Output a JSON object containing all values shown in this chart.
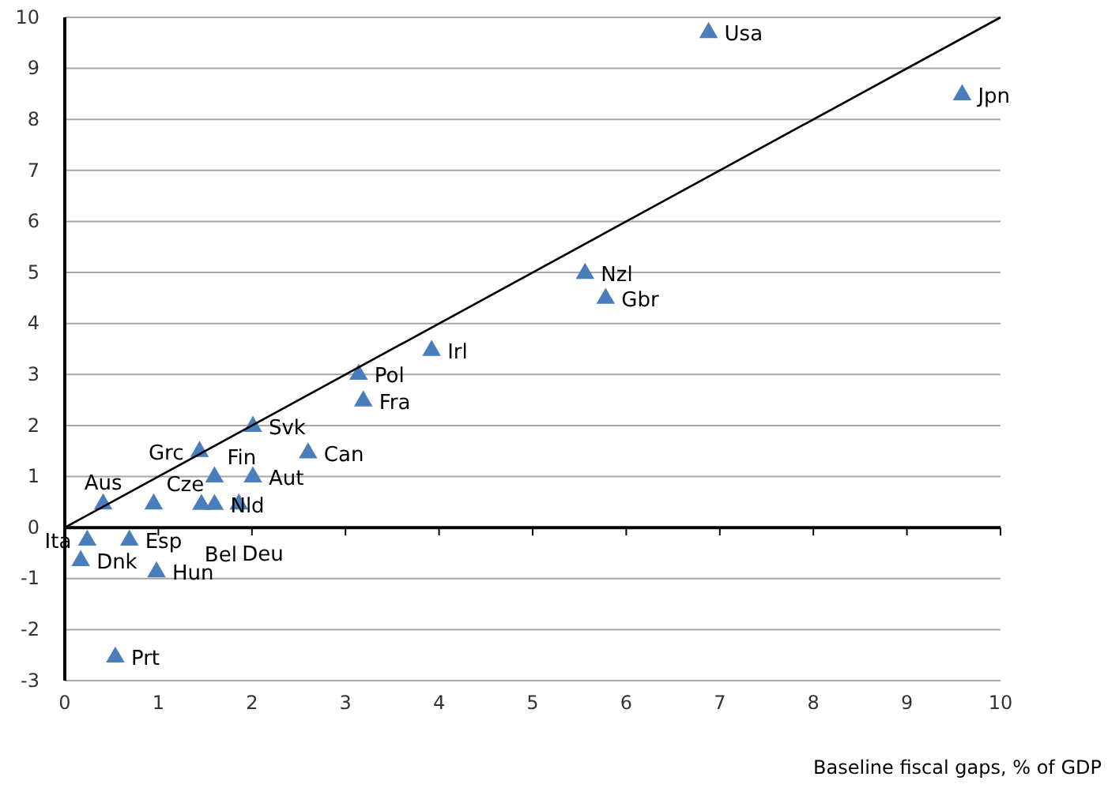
{
  "chart_data": {
    "type": "scatter",
    "xlabel": "Baseline fiscal gaps, % of GDP",
    "xlim": [
      0,
      10
    ],
    "xticks": [
      0,
      1,
      2,
      3,
      4,
      5,
      6,
      7,
      8,
      9,
      10
    ],
    "ylim": [
      -3,
      10
    ],
    "yticks": [
      -3,
      -2,
      -1,
      0,
      1,
      2,
      3,
      4,
      5,
      6,
      7,
      8,
      9,
      10
    ],
    "grid": "y",
    "marker": "triangle",
    "series": [
      {
        "color": "#4a7ebb",
        "x": [
          6.88,
          9.59,
          5.56,
          5.78,
          3.92,
          3.14,
          3.19,
          2.01,
          2.6,
          1.44,
          1.6,
          2.01,
          0.41,
          0.95,
          1.46,
          1.6,
          1.86,
          0.24,
          0.69,
          0.17,
          0.98,
          0.54
        ],
        "values": [
          9.7,
          8.48,
          4.98,
          4.49,
          3.47,
          3.0,
          2.48,
          1.98,
          1.46,
          1.49,
          0.99,
          0.99,
          0.46,
          0.46,
          0.45,
          0.45,
          0.46,
          -0.25,
          -0.25,
          -0.65,
          -0.87,
          -2.54
        ]
      },
      {
        "type": "line",
        "color": "#000000",
        "x": [
          0,
          10
        ],
        "values": [
          0,
          10
        ],
        "marker": "none"
      }
    ],
    "annotations": [
      {
        "text": "Usa",
        "x": 6.88,
        "y": 9.7
      },
      {
        "text": "Jpn",
        "x": 9.59,
        "y": 8.48
      },
      {
        "text": "Nzl",
        "x": 5.56,
        "y": 4.98
      },
      {
        "text": "Gbr",
        "x": 5.78,
        "y": 4.49
      },
      {
        "text": "Irl",
        "x": 3.92,
        "y": 3.47
      },
      {
        "text": "Pol",
        "x": 3.14,
        "y": 3.0
      },
      {
        "text": "Fra",
        "x": 3.19,
        "y": 2.48
      },
      {
        "text": "Svk",
        "x": 2.01,
        "y": 1.98
      },
      {
        "text": "Can",
        "x": 2.6,
        "y": 1.46
      },
      {
        "text": "Grc",
        "x": 1.44,
        "y": 1.49
      },
      {
        "text": "Fin",
        "x": 1.6,
        "y": 0.99
      },
      {
        "text": "Aut",
        "x": 2.01,
        "y": 0.99
      },
      {
        "text": "Aus",
        "x": 0.41,
        "y": 0.46
      },
      {
        "text": "Cze",
        "x": 0.95,
        "y": 0.46
      },
      {
        "text": "Bel",
        "x": 1.46,
        "y": 0.45
      },
      {
        "text": "Nld",
        "x": 1.6,
        "y": 0.45
      },
      {
        "text": "Deu",
        "x": 1.86,
        "y": 0.46
      },
      {
        "text": "Ita",
        "x": 0.24,
        "y": -0.25
      },
      {
        "text": "Esp",
        "x": 0.69,
        "y": -0.25
      },
      {
        "text": "Dnk",
        "x": 0.17,
        "y": -0.65
      },
      {
        "text": "Hun",
        "x": 0.98,
        "y": -0.87
      },
      {
        "text": "Prt",
        "x": 0.54,
        "y": -2.54
      }
    ]
  }
}
